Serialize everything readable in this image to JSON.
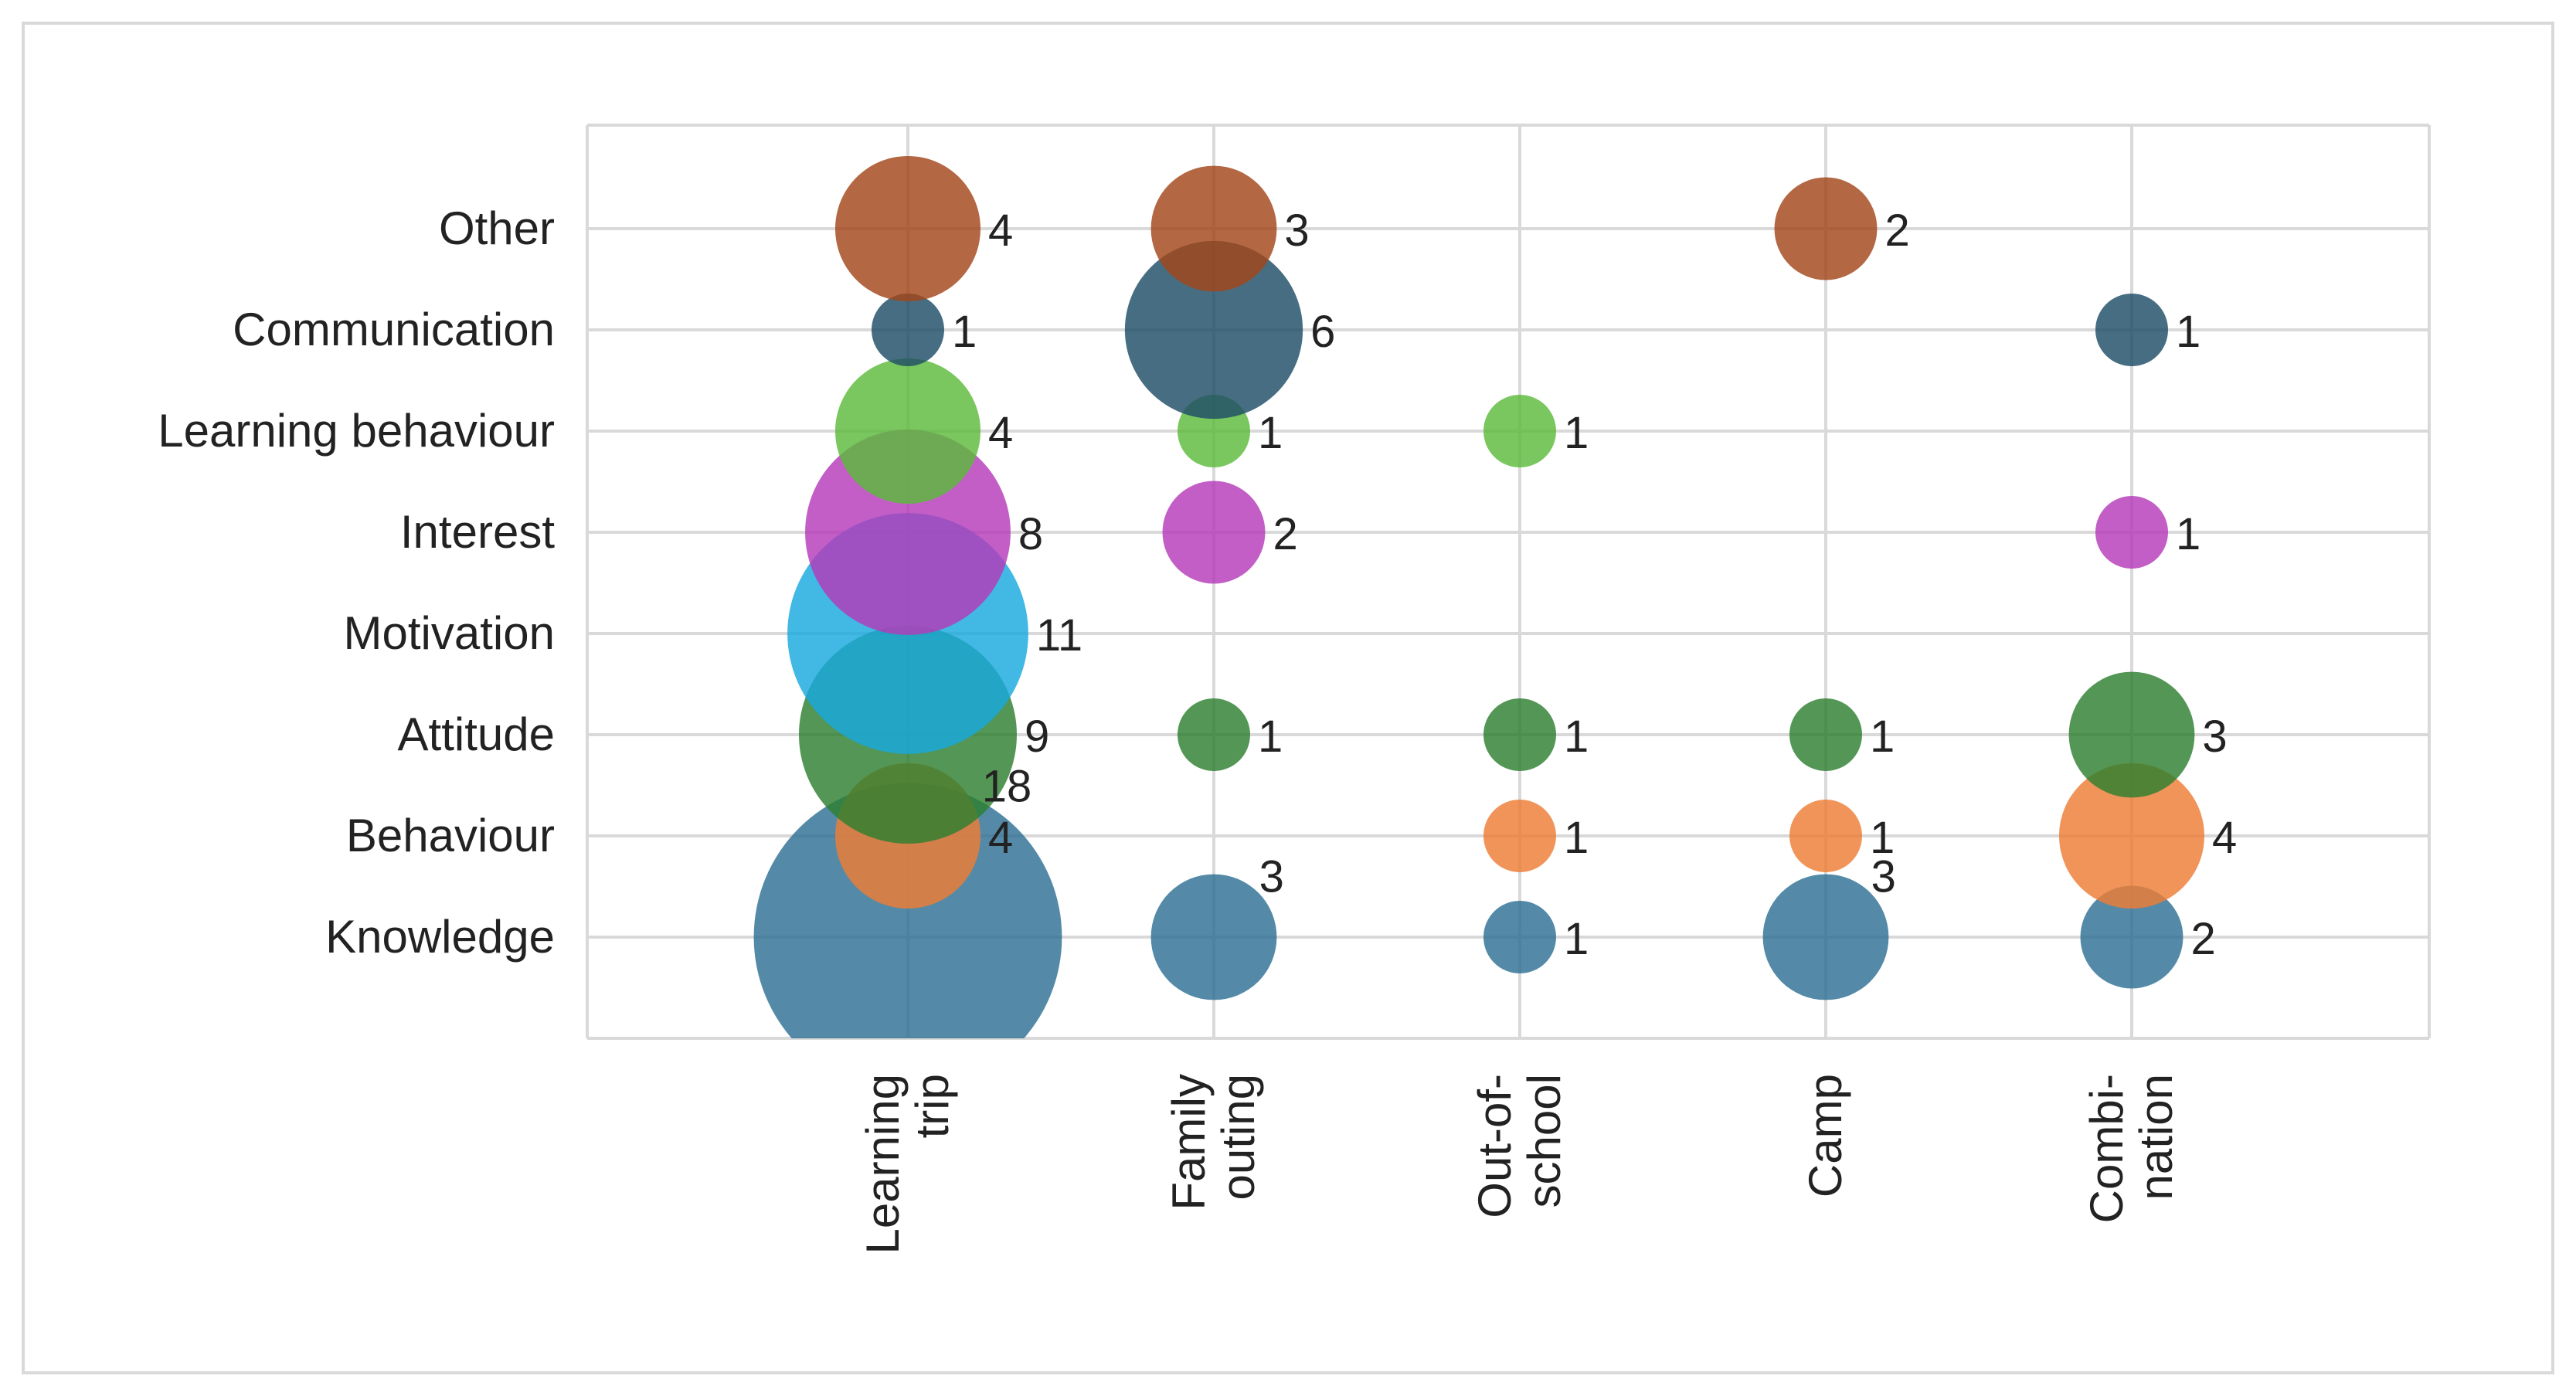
{
  "chart_data": {
    "type": "bubble",
    "title": "",
    "xlabel": "",
    "ylabel": "",
    "grid": true,
    "legend": "none",
    "x_categories": [
      [
        "Learning",
        "trip"
      ],
      [
        "Family",
        "outing"
      ],
      [
        "Out-of-",
        "school"
      ],
      [
        "Camp"
      ],
      [
        "Combi-",
        "nation"
      ]
    ],
    "y_categories": [
      "Knowledge",
      "Behaviour",
      "Attitude",
      "Motivation",
      "Interest",
      "Learning behaviour",
      "Communication",
      "Other"
    ],
    "series": [
      {
        "category": "Knowledge",
        "color": "#2e7095",
        "values": [
          18,
          3,
          1,
          3,
          2
        ]
      },
      {
        "category": "Behaviour",
        "color": "#ee7d36",
        "values": [
          4,
          null,
          1,
          1,
          4
        ]
      },
      {
        "category": "Attitude",
        "color": "#2d7f2f",
        "values": [
          9,
          1,
          1,
          1,
          3
        ]
      },
      {
        "category": "Motivation",
        "color": "#18a8de",
        "values": [
          11,
          null,
          null,
          null,
          null
        ]
      },
      {
        "category": "Interest",
        "color": "#b43aba",
        "values": [
          8,
          2,
          null,
          null,
          1
        ]
      },
      {
        "category": "Learning behaviour",
        "color": "#5cbb3a",
        "values": [
          4,
          1,
          1,
          null,
          null
        ]
      },
      {
        "category": "Communication",
        "color": "#1e4d66",
        "values": [
          1,
          6,
          null,
          null,
          1
        ]
      },
      {
        "category": "Other",
        "color": "#a2461a",
        "values": [
          4,
          3,
          null,
          2,
          null
        ]
      }
    ]
  }
}
